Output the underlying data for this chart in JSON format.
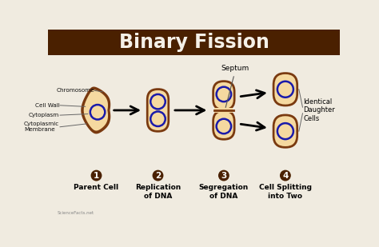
{
  "title": "Binary Fission",
  "title_bg": "#4a2000",
  "title_color": "#f5f0e8",
  "bg_color": "#f0ebe0",
  "cell_fill": "#f5d9a0",
  "cell_edge": "#7a3a10",
  "chrom_color": "#1a1aaa",
  "chrom_fill": "#f5d9a0",
  "step_labels": [
    "Parent Cell",
    "Replication\nof DNA",
    "Segregation\nof DNA",
    "Cell Splitting\ninto Two"
  ],
  "step_numbers": [
    "1",
    "2",
    "3",
    "4"
  ],
  "left_annotations": [
    "Chromosome",
    "Cell Wall",
    "Cytoplasm",
    "Cytoplasmic\nMembrane"
  ],
  "right_annotation": "Identical\nDaughter\nCells",
  "septum_label": "Septum",
  "watermark": "ScienceFacts.net"
}
